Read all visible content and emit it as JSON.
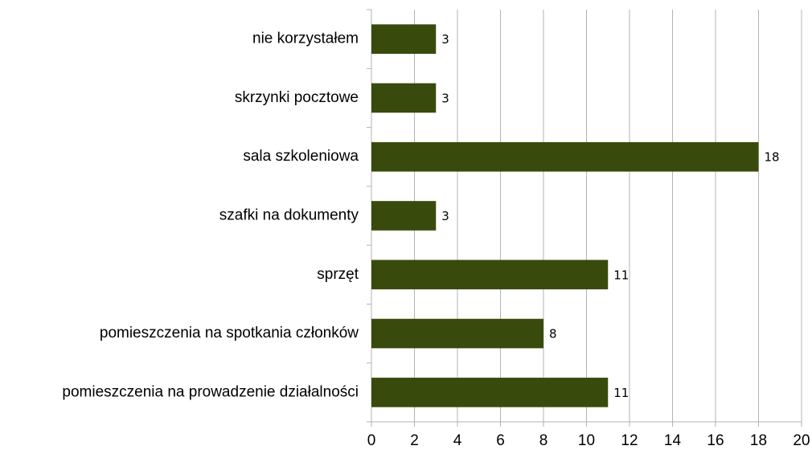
{
  "chart_data": {
    "type": "bar",
    "orientation": "horizontal",
    "categories": [
      "nie korzystałem",
      "skrzynki pocztowe",
      "sala szkoleniowa",
      "szafki na dokumenty",
      "sprzęt",
      "pomieszczenia na spotkania członków",
      "pomieszczenia na prowadzenie działalności"
    ],
    "values": [
      3,
      3,
      18,
      3,
      11,
      8,
      11
    ],
    "color": "#384b0c",
    "xlim": [
      0,
      20
    ],
    "xticks": [
      0,
      2,
      4,
      6,
      8,
      10,
      12,
      14,
      16,
      18,
      20
    ],
    "grid": true
  }
}
